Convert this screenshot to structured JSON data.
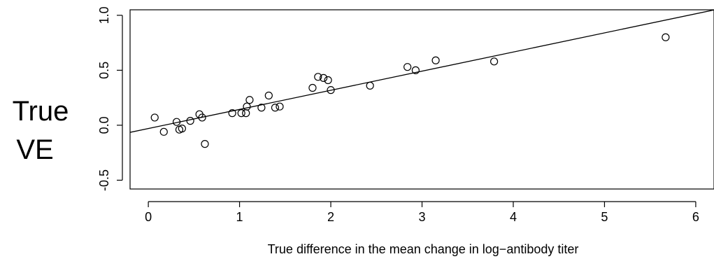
{
  "chart_data": {
    "type": "scatter",
    "title": "",
    "xlabel": "True difference in the mean change in log−antibody titer",
    "ylabel": "True VE",
    "xlim": [
      -0.2,
      6.2
    ],
    "ylim": [
      -0.58,
      1.05
    ],
    "x_ticks": [
      0,
      1,
      2,
      3,
      4,
      5,
      6
    ],
    "x_tick_labels": [
      "0",
      "1",
      "2",
      "3",
      "4",
      "5",
      "6"
    ],
    "y_ticks": [
      -0.5,
      0.0,
      0.5,
      1.0
    ],
    "y_tick_labels": [
      "-0.5",
      "0.0",
      "0.5",
      "1.0"
    ],
    "grid": false,
    "legend": "none",
    "marker": "open-circle",
    "fit_line": {
      "intercept": -0.03,
      "slope": 0.174
    },
    "points": [
      {
        "x": 0.07,
        "y": 0.07
      },
      {
        "x": 0.17,
        "y": -0.06
      },
      {
        "x": 0.31,
        "y": 0.03
      },
      {
        "x": 0.34,
        "y": -0.04
      },
      {
        "x": 0.37,
        "y": -0.03
      },
      {
        "x": 0.46,
        "y": 0.04
      },
      {
        "x": 0.56,
        "y": 0.1
      },
      {
        "x": 0.59,
        "y": 0.07
      },
      {
        "x": 0.62,
        "y": -0.17
      },
      {
        "x": 0.92,
        "y": 0.11
      },
      {
        "x": 1.02,
        "y": 0.11
      },
      {
        "x": 1.07,
        "y": 0.11
      },
      {
        "x": 1.08,
        "y": 0.17
      },
      {
        "x": 1.11,
        "y": 0.23
      },
      {
        "x": 1.24,
        "y": 0.16
      },
      {
        "x": 1.32,
        "y": 0.27
      },
      {
        "x": 1.39,
        "y": 0.16
      },
      {
        "x": 1.44,
        "y": 0.17
      },
      {
        "x": 1.8,
        "y": 0.34
      },
      {
        "x": 1.86,
        "y": 0.44
      },
      {
        "x": 1.92,
        "y": 0.43
      },
      {
        "x": 1.97,
        "y": 0.41
      },
      {
        "x": 2.0,
        "y": 0.32
      },
      {
        "x": 2.43,
        "y": 0.36
      },
      {
        "x": 2.84,
        "y": 0.53
      },
      {
        "x": 2.93,
        "y": 0.5
      },
      {
        "x": 3.15,
        "y": 0.59
      },
      {
        "x": 3.79,
        "y": 0.58
      },
      {
        "x": 5.67,
        "y": 0.8
      }
    ]
  }
}
